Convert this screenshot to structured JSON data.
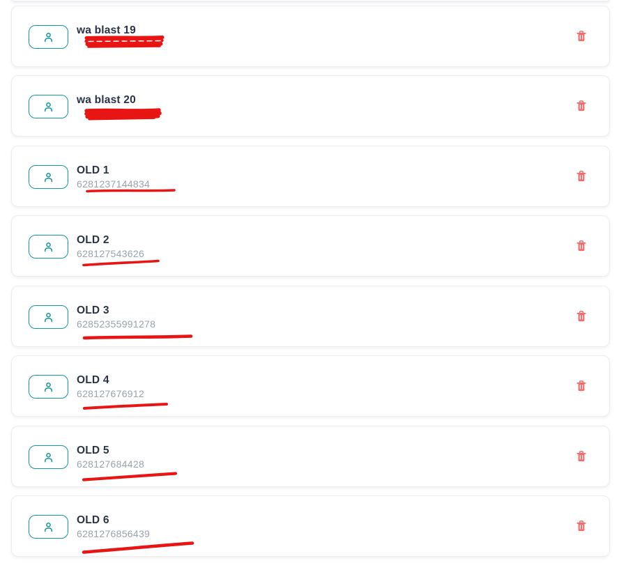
{
  "list_title": "whatsapp-account-list",
  "accounts": [
    {
      "name": "wa blast 19",
      "number": "",
      "redacted": true,
      "annotation": "scribble"
    },
    {
      "name": "wa blast 20",
      "number": "",
      "redacted": true,
      "annotation": "scribble"
    },
    {
      "name": "OLD 1",
      "number": "6281237144834",
      "redacted": false,
      "annotation": "underline"
    },
    {
      "name": "OLD 2",
      "number": "628127543626",
      "redacted": false,
      "annotation": "underline"
    },
    {
      "name": "OLD 3",
      "number": "62852355991278",
      "redacted": false,
      "annotation": "underline"
    },
    {
      "name": "OLD 4",
      "number": "628127676912",
      "redacted": false,
      "annotation": "underline"
    },
    {
      "name": "OLD 5",
      "number": "628127684428",
      "redacted": false,
      "annotation": "underline"
    },
    {
      "name": "OLD 6",
      "number": "6281276856439",
      "redacted": false,
      "annotation": "underline"
    }
  ],
  "icons": {
    "avatar": "user-icon",
    "delete": "trash-icon"
  },
  "colors": {
    "teal_accent": "#12999c",
    "name_text": "#2b3447",
    "number_text": "#9aa3ae",
    "card_border": "#ecedf1",
    "card_bg": "#ffffff",
    "page_bg": "#ffffff",
    "trash_red": "#f56b6b",
    "annotation_red": "#e81515"
  }
}
